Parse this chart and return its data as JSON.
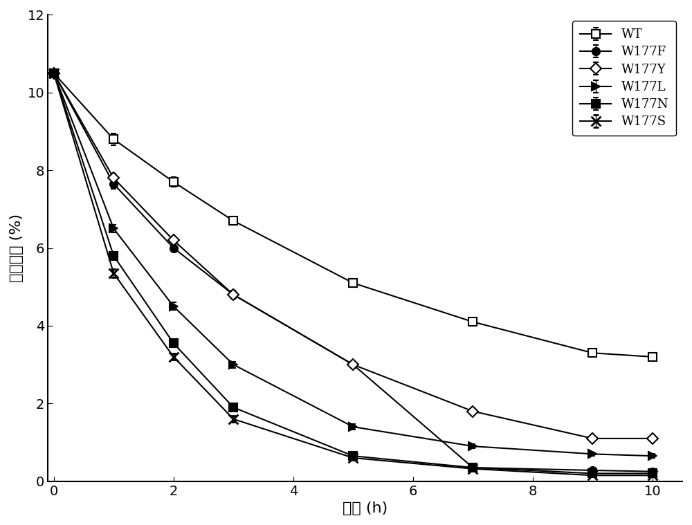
{
  "x": [
    0,
    1,
    2,
    3,
    5,
    7,
    9,
    10
  ],
  "series": [
    {
      "label": "WT",
      "y": [
        10.5,
        8.8,
        7.7,
        6.7,
        5.1,
        4.1,
        3.3,
        3.2
      ],
      "yerr": [
        0.0,
        0.15,
        0.12,
        0.1,
        0.1,
        0.1,
        0.08,
        0.08
      ],
      "marker": "s",
      "markerfacecolor": "white",
      "markeredgecolor": "black",
      "color": "black",
      "linestyle": "-",
      "markersize": 8
    },
    {
      "label": "W177F",
      "y": [
        10.5,
        7.65,
        6.0,
        4.8,
        3.0,
        0.35,
        0.28,
        0.25
      ],
      "yerr": [
        0.0,
        0.12,
        0.1,
        0.1,
        0.08,
        0.05,
        0.04,
        0.04
      ],
      "marker": "o",
      "markerfacecolor": "black",
      "markeredgecolor": "black",
      "color": "black",
      "linestyle": "-",
      "markersize": 8
    },
    {
      "label": "W177Y",
      "y": [
        10.5,
        7.8,
        6.2,
        4.8,
        3.0,
        1.8,
        1.1,
        1.1
      ],
      "yerr": [
        0.0,
        0.12,
        0.1,
        0.1,
        0.08,
        0.08,
        0.06,
        0.06
      ],
      "marker": "D",
      "markerfacecolor": "white",
      "markeredgecolor": "black",
      "color": "black",
      "linestyle": "-",
      "markersize": 8
    },
    {
      "label": "W177L",
      "y": [
        10.5,
        6.5,
        4.5,
        3.0,
        1.4,
        0.9,
        0.7,
        0.65
      ],
      "yerr": [
        0.0,
        0.1,
        0.1,
        0.08,
        0.07,
        0.06,
        0.05,
        0.05
      ],
      "marker": ">",
      "markerfacecolor": "black",
      "markeredgecolor": "black",
      "color": "black",
      "linestyle": "-",
      "markersize": 8
    },
    {
      "label": "W177N",
      "y": [
        10.5,
        5.8,
        3.55,
        1.9,
        0.65,
        0.35,
        0.2,
        0.2
      ],
      "yerr": [
        0.0,
        0.1,
        0.1,
        0.08,
        0.06,
        0.05,
        0.04,
        0.04
      ],
      "marker": "s",
      "markerfacecolor": "black",
      "markeredgecolor": "black",
      "color": "black",
      "linestyle": "-",
      "markersize": 8
    },
    {
      "label": "W177S",
      "y": [
        10.5,
        5.35,
        3.2,
        1.6,
        0.6,
        0.32,
        0.15,
        0.15
      ],
      "yerr": [
        0.0,
        0.1,
        0.08,
        0.08,
        0.05,
        0.04,
        0.03,
        0.03
      ],
      "marker": "x",
      "markerfacecolor": "black",
      "markeredgecolor": "black",
      "color": "black",
      "linestyle": "-",
      "markersize": 10,
      "markeredgewidth": 2.0
    }
  ],
  "xlabel": "时间 (h)",
  "ylabel": "三糖含量 (%)",
  "xlim": [
    -0.1,
    10.5
  ],
  "ylim": [
    0,
    12
  ],
  "xticks": [
    0,
    2,
    4,
    6,
    8,
    10
  ],
  "yticks": [
    0,
    2,
    4,
    6,
    8,
    10,
    12
  ],
  "background_color": "#ffffff",
  "legend_fontsize": 13,
  "axis_fontsize": 16,
  "tick_fontsize": 14,
  "linewidth": 1.5,
  "legend_loc": "upper right"
}
